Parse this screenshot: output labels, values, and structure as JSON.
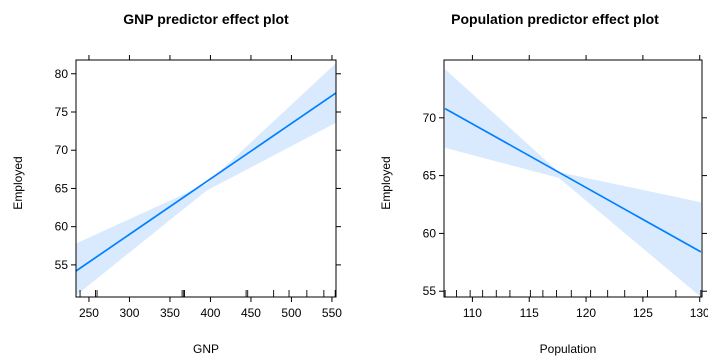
{
  "chart_data": [
    {
      "type": "line",
      "title": "GNP predictor effect plot",
      "xlabel": "GNP",
      "ylabel": "Employed",
      "xlim": [
        234,
        555
      ],
      "ylim": [
        50.8,
        81.8
      ],
      "xticks": [
        250,
        300,
        350,
        400,
        450,
        500,
        550
      ],
      "yticks": [
        55,
        60,
        65,
        70,
        75,
        80
      ],
      "series": [
        {
          "x": [
            234,
            555
          ],
          "y": [
            54.2,
            77.5
          ]
        }
      ],
      "band": {
        "x": [
          234,
          395,
          555
        ],
        "lower": [
          51.0,
          64.7,
          73.6
        ],
        "upper": [
          57.8,
          65.6,
          81.4
        ]
      },
      "rug": [
        239,
        258,
        260,
        365,
        367,
        368,
        444,
        446,
        478,
        497,
        519,
        540,
        554
      ],
      "grid": false,
      "colors": {
        "line": "#0080ff",
        "band": "#d9eaff"
      }
    },
    {
      "type": "line",
      "title": "Population predictor effect plot",
      "xlabel": "Population",
      "ylabel": "Employed",
      "xlim": [
        107.5,
        130.2
      ],
      "ylim": [
        54.5,
        75.0
      ],
      "xticks": [
        110,
        115,
        120,
        125,
        130
      ],
      "yticks": [
        55,
        60,
        65,
        70
      ],
      "series": [
        {
          "x": [
            107.6,
            130.1
          ],
          "y": [
            70.8,
            58.4
          ]
        }
      ],
      "band": {
        "x": [
          107.6,
          117.6,
          130.1
        ],
        "lower": [
          67.4,
          64.8,
          54.5
        ],
        "upper": [
          74.2,
          65.3,
          62.7
        ]
      },
      "rug": [
        107.6,
        108.6,
        109.8,
        110.9,
        112.1,
        113.3,
        115.1,
        116.2,
        117.4,
        118.7,
        120.4,
        121.9,
        123.4,
        125.4,
        127.9,
        130.1
      ],
      "grid": false,
      "colors": {
        "line": "#0080ff",
        "band": "#d9eaff"
      }
    }
  ]
}
